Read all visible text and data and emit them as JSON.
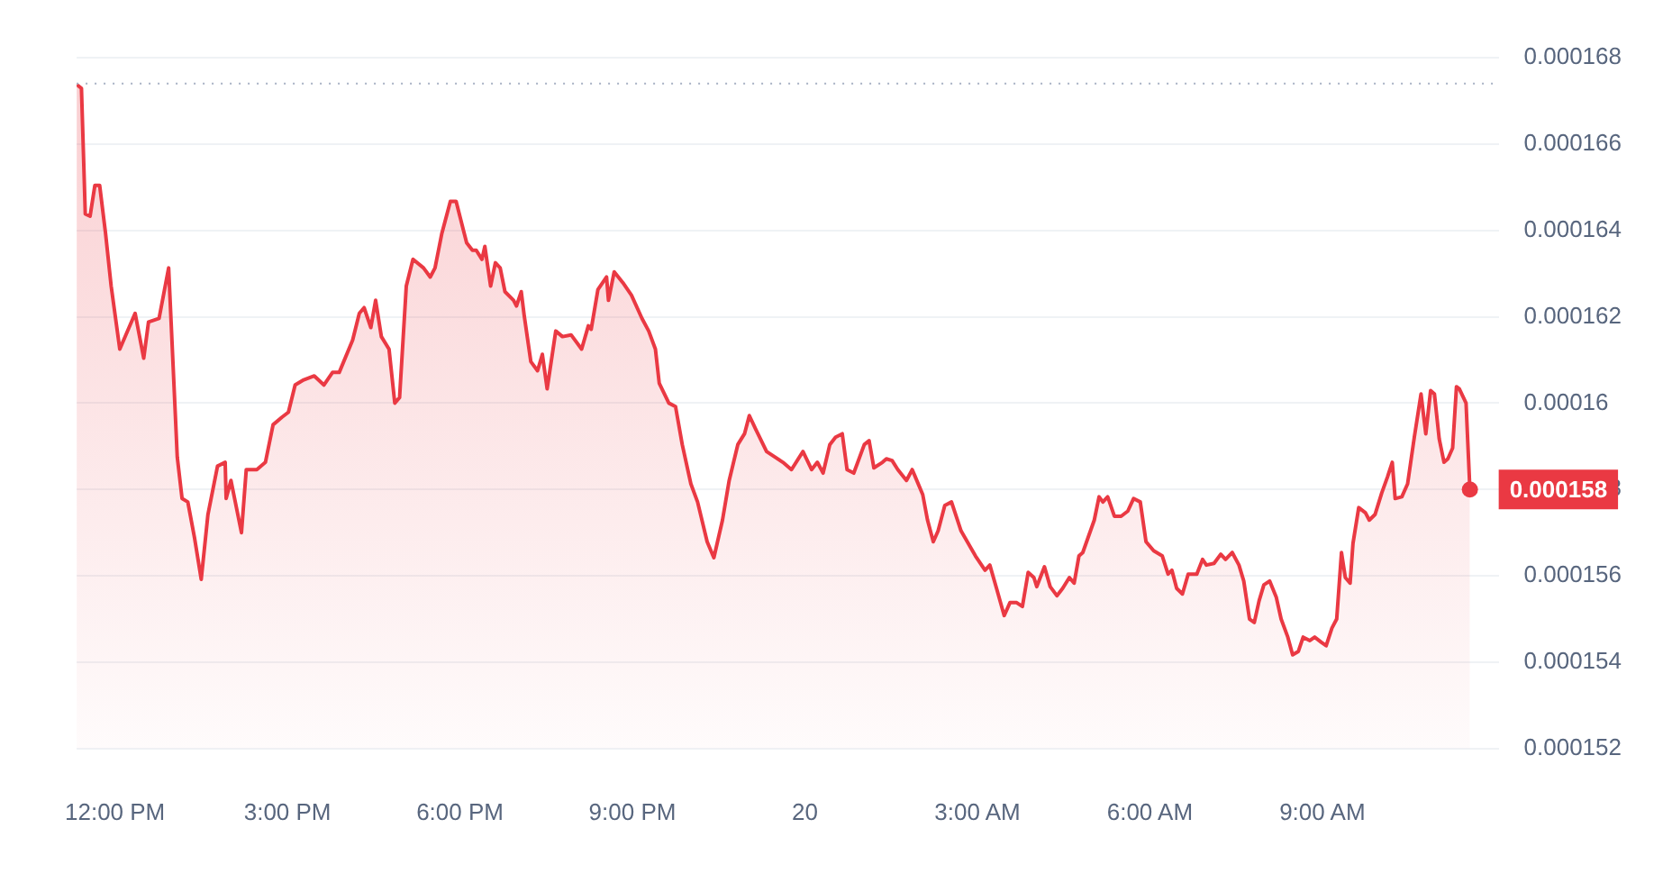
{
  "chart_data": {
    "type": "area",
    "color": "#ea3943",
    "x": [
      "--05-19T11:20",
      "--05-19T11:25",
      "--05-19T11:29",
      "--05-19T11:34",
      "--05-19T11:39",
      "--05-19T11:44",
      "--05-19T11:50",
      "--05-19T11:56",
      "--05-19T12:05",
      "--05-19T12:21",
      "--05-19T12:30",
      "--05-19T12:35",
      "--05-19T12:46",
      "--05-19T12:56",
      "--05-19T13:05",
      "--05-19T13:10",
      "--05-19T13:16",
      "--05-19T13:23",
      "--05-19T13:30",
      "--05-19T13:37",
      "--05-19T13:47",
      "--05-19T13:55",
      "--05-19T13:56",
      "--05-19T14:01",
      "--05-19T14:12",
      "--05-19T14:17",
      "--05-19T14:28",
      "--05-19T14:37",
      "--05-19T14:45",
      "--05-19T14:54",
      "--05-19T15:01",
      "--05-19T15:08",
      "--05-19T15:17",
      "--05-19T15:28",
      "--05-19T15:38",
      "--05-19T15:47",
      "--05-19T15:54",
      "--05-19T16:08",
      "--05-19T16:15",
      "--05-19T16:20",
      "--05-19T16:27",
      "--05-19T16:32",
      "--05-19T16:38",
      "--05-19T16:46",
      "--05-19T16:52",
      "--05-19T16:57",
      "--05-19T17:04",
      "--05-19T17:11",
      "--05-19T17:22",
      "--05-19T17:29",
      "--05-19T17:34",
      "--05-19T17:41",
      "--05-19T17:50",
      "--05-19T17:56",
      "--05-19T18:07",
      "--05-19T18:13",
      "--05-19T18:17",
      "--05-19T18:23",
      "--05-19T18:26",
      "--05-19T18:32",
      "--05-19T18:37",
      "--05-19T18:42",
      "--05-19T18:47",
      "--05-19T18:56",
      "--05-19T18:59",
      "--05-19T19:04",
      "--05-19T19:07",
      "--05-19T19:14",
      "--05-19T19:21",
      "--05-19T19:26",
      "--05-19T19:31",
      "--05-19T19:40",
      "--05-19T19:47",
      "--05-19T19:56",
      "--05-19T20:07",
      "--05-19T20:14",
      "--05-19T20:17",
      "--05-19T20:24",
      "--05-19T20:33",
      "--05-19T20:35",
      "--05-19T20:41",
      "--05-19T20:50",
      "--05-19T20:59",
      "--05-19T21:10",
      "--05-19T21:17",
      "--05-19T21:24",
      "--05-19T21:28",
      "--05-19T21:38",
      "--05-19T21:45",
      "--05-19T21:52",
      "--05-19T22:01",
      "--05-19T22:08",
      "--05-19T22:18",
      "--05-19T22:25",
      "--05-19T22:34",
      "--05-19T22:41",
      "--05-19T22:50",
      "--05-19T22:57",
      "--05-19T23:02",
      "--05-19T23:09",
      "--05-19T23:20",
      "--05-19T23:37",
      "--05-19T23:46",
      "--05-19T23:58",
      "--05-20T00:07",
      "--05-20T00:13",
      "--05-20T00:19",
      "--05-20T00:26",
      "--05-20T00:32",
      "--05-20T00:39",
      "--05-20T00:44",
      "--05-20T00:51",
      "--05-20T01:02",
      "--05-20T01:07",
      "--05-20T01:12",
      "--05-20T01:21",
      "--05-20T01:25",
      "--05-20T01:31",
      "--05-20T01:37",
      "--05-20T01:46",
      "--05-20T01:52",
      "--05-20T02:03",
      "--05-20T02:08",
      "--05-20T02:14",
      "--05-20T02:19",
      "--05-20T02:26",
      "--05-20T02:33",
      "--05-20T02:43",
      "--05-20T02:58",
      "--05-20T03:08",
      "--05-20T03:13",
      "--05-20T03:20",
      "--05-20T03:28",
      "--05-20T03:34",
      "--05-20T03:41",
      "--05-20T03:47",
      "--05-20T03:53",
      "--05-20T03:59",
      "--05-20T04:02",
      "--05-20T04:10",
      "--05-20T04:16",
      "--05-20T04:23",
      "--05-20T04:29",
      "--05-20T04:36",
      "--05-20T04:41",
      "--05-20T04:46",
      "--05-20T04:50",
      "--05-20T05:02",
      "--05-20T05:07",
      "--05-20T05:11",
      "--05-20T05:16",
      "--05-20T05:23",
      "--05-20T05:30",
      "--05-20T05:37",
      "--05-20T05:43",
      "--05-20T05:50",
      "--05-20T05:56",
      "--05-20T06:04",
      "--05-20T06:13",
      "--05-20T06:19",
      "--05-20T06:23",
      "--05-20T06:28",
      "--05-20T06:34",
      "--05-20T06:40",
      "--05-20T06:49",
      "--05-20T06:55",
      "--05-20T06:59",
      "--05-20T07:07",
      "--05-20T07:14",
      "--05-20T07:19",
      "--05-20T07:26",
      "--05-20T07:33",
      "--05-20T07:38",
      "--05-20T07:44",
      "--05-20T07:49",
      "--05-20T07:54",
      "--05-20T07:59",
      "--05-20T08:05",
      "--05-20T08:12",
      "--05-20T08:17",
      "--05-20T08:24",
      "--05-20T08:29",
      "--05-20T08:35",
      "--05-20T08:40",
      "--05-20T08:47",
      "--05-20T08:52",
      "--05-20T08:59",
      "--05-20T09:04",
      "--05-20T09:10",
      "--05-20T09:15",
      "--05-20T09:20",
      "--05-20T09:24",
      "--05-20T09:29",
      "--05-20T09:32",
      "--05-20T09:38",
      "--05-20T09:45",
      "--05-20T09:49",
      "--05-20T09:55",
      "--05-20T10:02",
      "--05-20T10:08",
      "--05-20T10:13",
      "--05-20T10:16",
      "--05-20T10:23",
      "--05-20T10:29",
      "--05-20T10:36",
      "--05-20T10:43",
      "--05-20T10:48",
      "--05-20T10:53",
      "--05-20T10:57",
      "--05-20T11:02",
      "--05-20T11:07",
      "--05-20T11:11",
      "--05-20T11:16",
      "--05-20T11:20",
      "--05-20T11:23",
      "--05-20T11:30",
      "--05-20T11:34"
    ],
    "values": [
      0.00016738,
      0.00016729,
      0.00016438,
      0.00016433,
      0.00016504,
      0.00016504,
      0.00016396,
      0.00016271,
      0.00016125,
      0.00016208,
      0.00016104,
      0.00016188,
      0.00016196,
      0.00016313,
      0.00015875,
      0.00015779,
      0.00015771,
      0.00015688,
      0.00015592,
      0.00015742,
      0.00015854,
      0.00015863,
      0.00015779,
      0.00015821,
      0.000157,
      0.00015846,
      0.00015846,
      0.00015863,
      0.0001595,
      0.00015967,
      0.00015979,
      0.00016042,
      0.00016054,
      0.00016063,
      0.00016042,
      0.00016071,
      0.00016071,
      0.00016146,
      0.00016208,
      0.00016221,
      0.00016175,
      0.00016238,
      0.00016154,
      0.00016125,
      0.00016,
      0.00016013,
      0.00016271,
      0.00016333,
      0.00016313,
      0.00016292,
      0.00016313,
      0.00016392,
      0.00016467,
      0.00016467,
      0.00016371,
      0.00016354,
      0.00016354,
      0.00016333,
      0.00016363,
      0.00016271,
      0.00016325,
      0.00016313,
      0.00016258,
      0.00016238,
      0.00016225,
      0.00016258,
      0.00016204,
      0.00016096,
      0.00016075,
      0.00016113,
      0.00016033,
      0.00016167,
      0.00016154,
      0.00016158,
      0.00016125,
      0.00016179,
      0.00016171,
      0.00016263,
      0.00016292,
      0.00016238,
      0.00016304,
      0.00016279,
      0.0001625,
      0.00016196,
      0.00016167,
      0.00016125,
      0.00016046,
      0.00016,
      0.00015992,
      0.00015904,
      0.00015813,
      0.00015771,
      0.00015679,
      0.00015642,
      0.00015729,
      0.00015821,
      0.00015904,
      0.00015929,
      0.00015971,
      0.00015938,
      0.00015888,
      0.00015863,
      0.00015846,
      0.00015888,
      0.00015846,
      0.00015863,
      0.00015838,
      0.00015904,
      0.00015921,
      0.00015929,
      0.00015846,
      0.00015838,
      0.00015904,
      0.00015913,
      0.0001585,
      0.00015863,
      0.00015871,
      0.00015867,
      0.00015846,
      0.00015821,
      0.00015846,
      0.00015788,
      0.00015729,
      0.00015679,
      0.00015704,
      0.00015763,
      0.00015771,
      0.00015704,
      0.00015646,
      0.00015613,
      0.00015625,
      0.00015571,
      0.00015508,
      0.00015538,
      0.00015538,
      0.00015529,
      0.00015608,
      0.00015596,
      0.00015575,
      0.00015621,
      0.00015575,
      0.00015554,
      0.00015571,
      0.00015596,
      0.00015583,
      0.00015646,
      0.00015654,
      0.00015729,
      0.00015783,
      0.00015771,
      0.00015783,
      0.00015738,
      0.00015738,
      0.0001575,
      0.00015779,
      0.00015771,
      0.00015679,
      0.00015658,
      0.00015646,
      0.00015604,
      0.00015613,
      0.00015571,
      0.00015558,
      0.00015604,
      0.00015604,
      0.00015638,
      0.00015625,
      0.00015629,
      0.0001565,
      0.00015638,
      0.00015654,
      0.00015625,
      0.00015588,
      0.000155,
      0.00015492,
      0.00015542,
      0.00015579,
      0.00015588,
      0.0001555,
      0.000155,
      0.00015458,
      0.00015417,
      0.00015425,
      0.00015458,
      0.0001545,
      0.00015458,
      0.00015446,
      0.00015438,
      0.00015479,
      0.000155,
      0.00015654,
      0.00015596,
      0.00015583,
      0.00015675,
      0.00015758,
      0.00015746,
      0.00015729,
      0.00015742,
      0.00015792,
      0.00015829,
      0.00015863,
      0.00015779,
      0.00015783,
      0.00015813,
      0.00015921,
      0.00016021,
      0.00015929,
      0.00016029,
      0.00016021,
      0.00015917,
      0.00015863,
      0.00015871,
      0.00015896,
      0.00016038,
      0.00016033,
      0.00016,
      0.000158
    ],
    "xlim": [
      "--05-19T11:20",
      "--05-20T12:04"
    ],
    "xticks": [
      {
        "value": "--05-19T12:00",
        "label": "12:00 PM"
      },
      {
        "value": "--05-19T15:00",
        "label": "3:00 PM"
      },
      {
        "value": "--05-19T18:00",
        "label": "6:00 PM"
      },
      {
        "value": "--05-19T21:00",
        "label": "9:00 PM"
      },
      {
        "value": "--05-20T00:00",
        "label": "20"
      },
      {
        "value": "--05-20T03:00",
        "label": "3:00 AM"
      },
      {
        "value": "--05-20T06:00",
        "label": "6:00 AM"
      },
      {
        "value": "--05-20T09:00",
        "label": "9:00 AM"
      }
    ],
    "ylim": [
      0.000152,
      0.000168
    ],
    "yticks": [
      0.000152,
      0.000154,
      0.000156,
      0.000158,
      0.00016,
      0.000162,
      0.000164,
      0.000166,
      0.000168
    ],
    "grid": "y",
    "legend": false,
    "marker": "none",
    "line_style": "solid",
    "ref_lines": [
      {
        "axis": "y",
        "value": 0.0001674,
        "color": "#a6b0c3",
        "line_style": "dotted"
      }
    ],
    "annotations": [
      {
        "text": "0.000158",
        "x": "--05-20T11:34",
        "y": 0.000158
      }
    ]
  }
}
